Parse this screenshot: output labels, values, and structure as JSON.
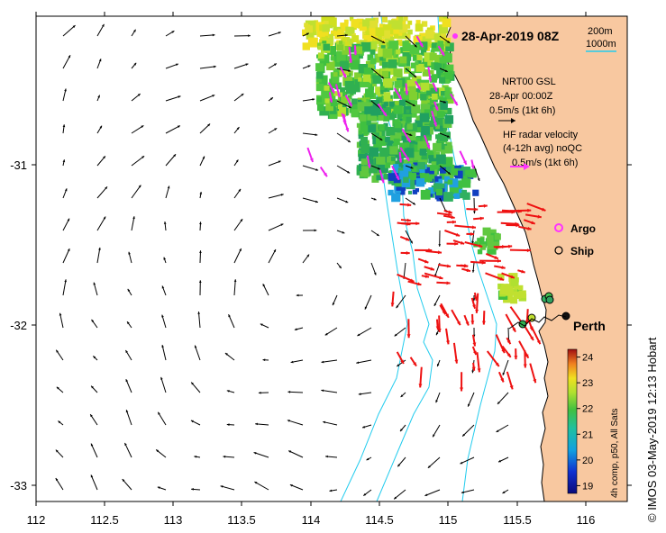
{
  "title": "28-Apr-2019 08Z",
  "isobath_legend": {
    "shallow": "200m",
    "deep": "1000m"
  },
  "nrt_legend": {
    "line1": "NRT00 GSL",
    "line2": "28-Apr 00:00Z",
    "line3": "0.5m/s (1kt 6h)"
  },
  "hf_legend": {
    "line1": "HF radar velocity",
    "line2": "(4-12h avg) noQC",
    "line3": "0.5m/s (1kt 6h)"
  },
  "markers_legend": {
    "argo": "Argo",
    "ship": "Ship"
  },
  "place_label": "Perth",
  "x_ticks": [
    "112",
    "112.5",
    "113",
    "113.5",
    "114",
    "114.5",
    "115",
    "115.5",
    "116"
  ],
  "y_ticks": [
    "-31",
    "-32",
    "-33"
  ],
  "colorbar": {
    "ticks": [
      "24",
      "23",
      "22",
      "21",
      "20",
      "19"
    ],
    "label": "4h comp, p50, All Sats",
    "range": [
      18.7,
      24.3
    ]
  },
  "credit": "© IMOS 03-May-2019 12:13 Hobart",
  "colors": {
    "land": "#f8c8a0",
    "isobath": "#22ccee",
    "hf_vector": "#ee1111",
    "argo": "#ff33ff",
    "sst_arrow": "#ee22ee"
  }
}
